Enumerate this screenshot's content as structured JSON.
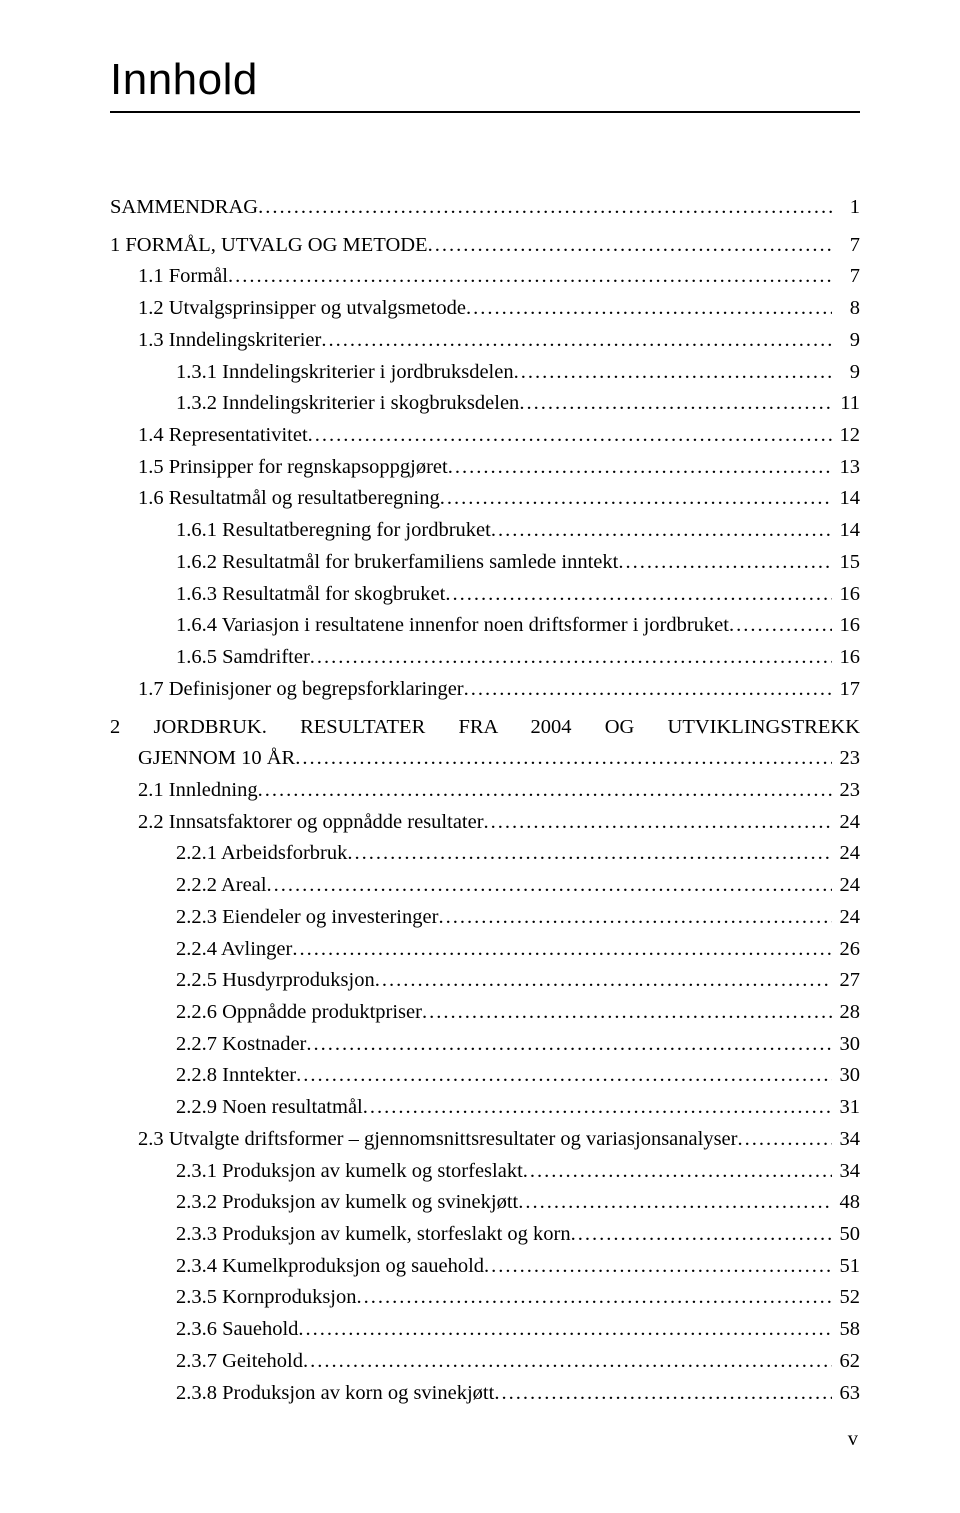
{
  "title": "Innhold",
  "title_fontsize": 44,
  "body_fontsize": 20.5,
  "line_height": 1.45,
  "page_number": "v",
  "background_color": "#ffffff",
  "text_color": "#000000",
  "toc": [
    {
      "label": "SAMMENDRAG",
      "page": "1",
      "indent": 0,
      "gap_top": false
    },
    {
      "label": "1  FORMÅL, UTVALG OG METODE",
      "page": "7",
      "indent": 0,
      "gap_top": true
    },
    {
      "label": "1.1  Formål",
      "page": "7",
      "indent": 1,
      "gap_top": false
    },
    {
      "label": "1.2  Utvalgsprinsipper og utvalgsmetode",
      "page": "8",
      "indent": 1,
      "gap_top": false
    },
    {
      "label": "1.3  Inndelingskriterier",
      "page": "9",
      "indent": 1,
      "gap_top": false
    },
    {
      "label": "1.3.1  Inndelingskriterier i jordbruksdelen",
      "page": "9",
      "indent": 2,
      "gap_top": false
    },
    {
      "label": "1.3.2  Inndelingskriterier i skogbruksdelen",
      "page": "11",
      "indent": 2,
      "gap_top": false
    },
    {
      "label": "1.4  Representativitet",
      "page": "12",
      "indent": 1,
      "gap_top": false
    },
    {
      "label": "1.5  Prinsipper for regnskapsoppgjøret",
      "page": "13",
      "indent": 1,
      "gap_top": false
    },
    {
      "label": "1.6  Resultatmål og resultatberegning",
      "page": "14",
      "indent": 1,
      "gap_top": false
    },
    {
      "label": "1.6.1  Resultatberegning for jordbruket",
      "page": "14",
      "indent": 2,
      "gap_top": false
    },
    {
      "label": "1.6.2  Resultatmål for brukerfamiliens samlede inntekt",
      "page": "15",
      "indent": 2,
      "gap_top": false
    },
    {
      "label": "1.6.3  Resultatmål for skogbruket",
      "page": "16",
      "indent": 2,
      "gap_top": false
    },
    {
      "label": "1.6.4  Variasjon i resultatene innenfor noen driftsformer i jordbruket",
      "page": "16",
      "indent": 2,
      "gap_top": false
    },
    {
      "label": "1.6.5  Samdrifter",
      "page": "16",
      "indent": 2,
      "gap_top": false
    },
    {
      "label": "1.7  Definisjoner og begrepsforklaringer",
      "page": "17",
      "indent": 1,
      "gap_top": false
    },
    {
      "label": "2  JORDBRUK.   RESULTATER   FRA   2004   OG   UTVIKLINGSTREKK GJENNOM 10 ÅR",
      "page": "23",
      "indent": 0,
      "gap_top": true,
      "wrap": true
    },
    {
      "label": "2.1  Innledning",
      "page": "23",
      "indent": 1,
      "gap_top": false
    },
    {
      "label": "2.2  Innsatsfaktorer og oppnådde resultater",
      "page": "24",
      "indent": 1,
      "gap_top": false
    },
    {
      "label": "2.2.1  Arbeidsforbruk",
      "page": "24",
      "indent": 2,
      "gap_top": false
    },
    {
      "label": "2.2.2  Areal",
      "page": "24",
      "indent": 2,
      "gap_top": false
    },
    {
      "label": "2.2.3  Eiendeler og investeringer",
      "page": "24",
      "indent": 2,
      "gap_top": false
    },
    {
      "label": "2.2.4  Avlinger",
      "page": "26",
      "indent": 2,
      "gap_top": false
    },
    {
      "label": "2.2.5  Husdyrproduksjon",
      "page": "27",
      "indent": 2,
      "gap_top": false
    },
    {
      "label": "2.2.6  Oppnådde produktpriser",
      "page": "28",
      "indent": 2,
      "gap_top": false
    },
    {
      "label": "2.2.7  Kostnader",
      "page": "30",
      "indent": 2,
      "gap_top": false
    },
    {
      "label": "2.2.8  Inntekter",
      "page": "30",
      "indent": 2,
      "gap_top": false
    },
    {
      "label": "2.2.9  Noen resultatmål",
      "page": "31",
      "indent": 2,
      "gap_top": false
    },
    {
      "label": "2.3  Utvalgte driftsformer – gjennomsnittsresultater og variasjonsanalyser",
      "page": "34",
      "indent": 1,
      "gap_top": false
    },
    {
      "label": "2.3.1  Produksjon av kumelk og storfeslakt",
      "page": "34",
      "indent": 2,
      "gap_top": false
    },
    {
      "label": "2.3.2  Produksjon av kumelk og svinekjøtt",
      "page": "48",
      "indent": 2,
      "gap_top": false
    },
    {
      "label": "2.3.3  Produksjon av kumelk, storfeslakt og korn",
      "page": "50",
      "indent": 2,
      "gap_top": false
    },
    {
      "label": "2.3.4  Kumelkproduksjon og sauehold",
      "page": "51",
      "indent": 2,
      "gap_top": false
    },
    {
      "label": "2.3.5  Kornproduksjon",
      "page": "52",
      "indent": 2,
      "gap_top": false
    },
    {
      "label": "2.3.6  Sauehold",
      "page": "58",
      "indent": 2,
      "gap_top": false
    },
    {
      "label": "2.3.7  Geitehold",
      "page": "62",
      "indent": 2,
      "gap_top": false
    },
    {
      "label": "2.3.8  Produksjon av korn og svinekjøtt",
      "page": "63",
      "indent": 2,
      "gap_top": false
    }
  ]
}
